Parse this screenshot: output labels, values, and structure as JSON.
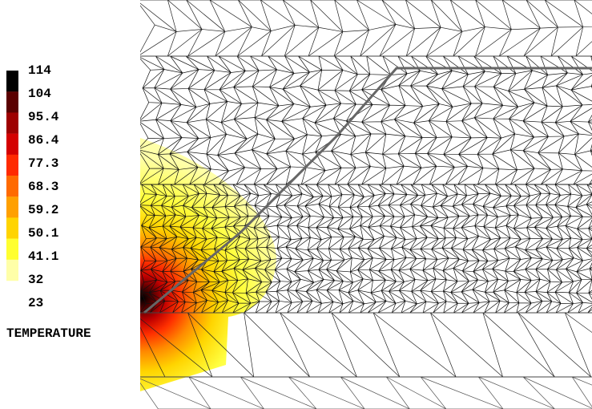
{
  "legend": {
    "labels": [
      "114",
      "104",
      "95.4",
      "86.4",
      "77.3",
      "68.3",
      "59.2",
      "50.1",
      "41.1",
      "32",
      "23"
    ],
    "colors": [
      "#000000",
      "#5a0000",
      "#9e0000",
      "#d40000",
      "#ff2a00",
      "#ff6a00",
      "#ffa000",
      "#ffd400",
      "#ffff30",
      "#ffffa8"
    ],
    "title": "TEMPERATURE"
  }
}
